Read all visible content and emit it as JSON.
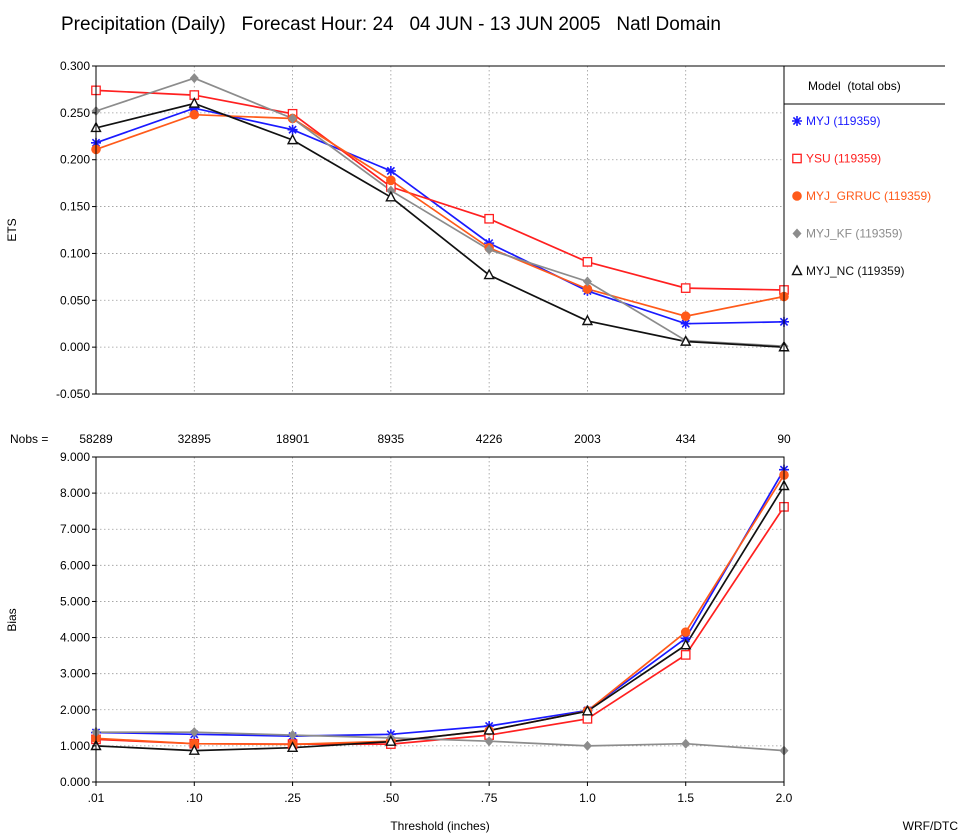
{
  "title": "Precipitation (Daily)   Forecast Hour: 24   04 JUN - 13 JUN 2005   Natl Domain",
  "credit": "WRF/DTC",
  "xlabel": "Threshold (inches)",
  "nobs_label": "Nobs =",
  "nobs": [
    "58289",
    "32895",
    "18901",
    "8935",
    "4226",
    "2003",
    "434",
    "90"
  ],
  "legend_title": "Model  (total obs)",
  "colors": {
    "MYJ": "#1a1aff",
    "YSU": "#ff2020",
    "MYJ_GRRUC": "#ff5a1a",
    "MYJ_KF": "#8c8c8c",
    "MYJ_NC": "#111111"
  },
  "chart_data": [
    {
      "type": "line",
      "xlabel": "",
      "ylabel": "ETS",
      "categories": [
        ".01",
        ".10",
        ".25",
        ".50",
        ".75",
        "1.0",
        "1.5",
        "2.0"
      ],
      "ylim": [
        -0.05,
        0.3
      ],
      "yticks": [
        "0.300",
        "0.250",
        "0.200",
        "0.150",
        "0.100",
        "0.050",
        "0.000",
        "-0.050"
      ],
      "grid": true,
      "legend": "right",
      "series": [
        {
          "name": "MYJ (119359)",
          "key": "MYJ",
          "marker": "star",
          "values": [
            0.218,
            0.255,
            0.232,
            0.188,
            0.111,
            0.06,
            0.025,
            0.027
          ]
        },
        {
          "name": "YSU (119359)",
          "key": "YSU",
          "marker": "square",
          "values": [
            0.274,
            0.269,
            0.249,
            0.171,
            0.137,
            0.091,
            0.063,
            0.061
          ]
        },
        {
          "name": "MYJ_GRRUC (119359)",
          "key": "MYJ_GRRUC",
          "marker": "circle",
          "values": [
            0.211,
            0.248,
            0.244,
            0.178,
            0.106,
            0.062,
            0.033,
            0.054
          ]
        },
        {
          "name": "MYJ_KF (119359)",
          "key": "MYJ_KF",
          "marker": "diamond",
          "values": [
            0.252,
            0.287,
            0.244,
            0.167,
            0.104,
            0.07,
            0.007,
            0.001
          ]
        },
        {
          "name": "MYJ_NC (119359)",
          "key": "MYJ_NC",
          "marker": "triangle",
          "values": [
            0.234,
            0.26,
            0.221,
            0.16,
            0.077,
            0.028,
            0.006,
            0.0
          ]
        }
      ]
    },
    {
      "type": "line",
      "xlabel": "Threshold (inches)",
      "ylabel": "Bias",
      "categories": [
        ".01",
        ".10",
        ".25",
        ".50",
        ".75",
        "1.0",
        "1.5",
        "2.0"
      ],
      "ylim": [
        0,
        9
      ],
      "yticks": [
        "9.000",
        "8.000",
        "7.000",
        "6.000",
        "5.000",
        "4.000",
        "3.000",
        "2.000",
        "1.000",
        "0.000"
      ],
      "grid": true,
      "series": [
        {
          "key": "MYJ",
          "marker": "star",
          "values": [
            1.37,
            1.32,
            1.27,
            1.32,
            1.55,
            1.98,
            3.98,
            8.65
          ]
        },
        {
          "key": "YSU",
          "marker": "square",
          "values": [
            1.18,
            1.06,
            1.05,
            1.05,
            1.3,
            1.75,
            3.52,
            7.62
          ]
        },
        {
          "key": "MYJ_GRRUC",
          "marker": "circle",
          "values": [
            1.21,
            1.06,
            1.04,
            1.13,
            1.42,
            1.97,
            4.15,
            8.5
          ]
        },
        {
          "key": "MYJ_KF",
          "marker": "diamond",
          "values": [
            1.38,
            1.38,
            1.3,
            1.22,
            1.13,
            1.0,
            1.06,
            0.87
          ]
        },
        {
          "key": "MYJ_NC",
          "marker": "triangle",
          "values": [
            1.0,
            0.87,
            0.95,
            1.12,
            1.43,
            1.96,
            3.79,
            8.2
          ]
        }
      ]
    }
  ]
}
